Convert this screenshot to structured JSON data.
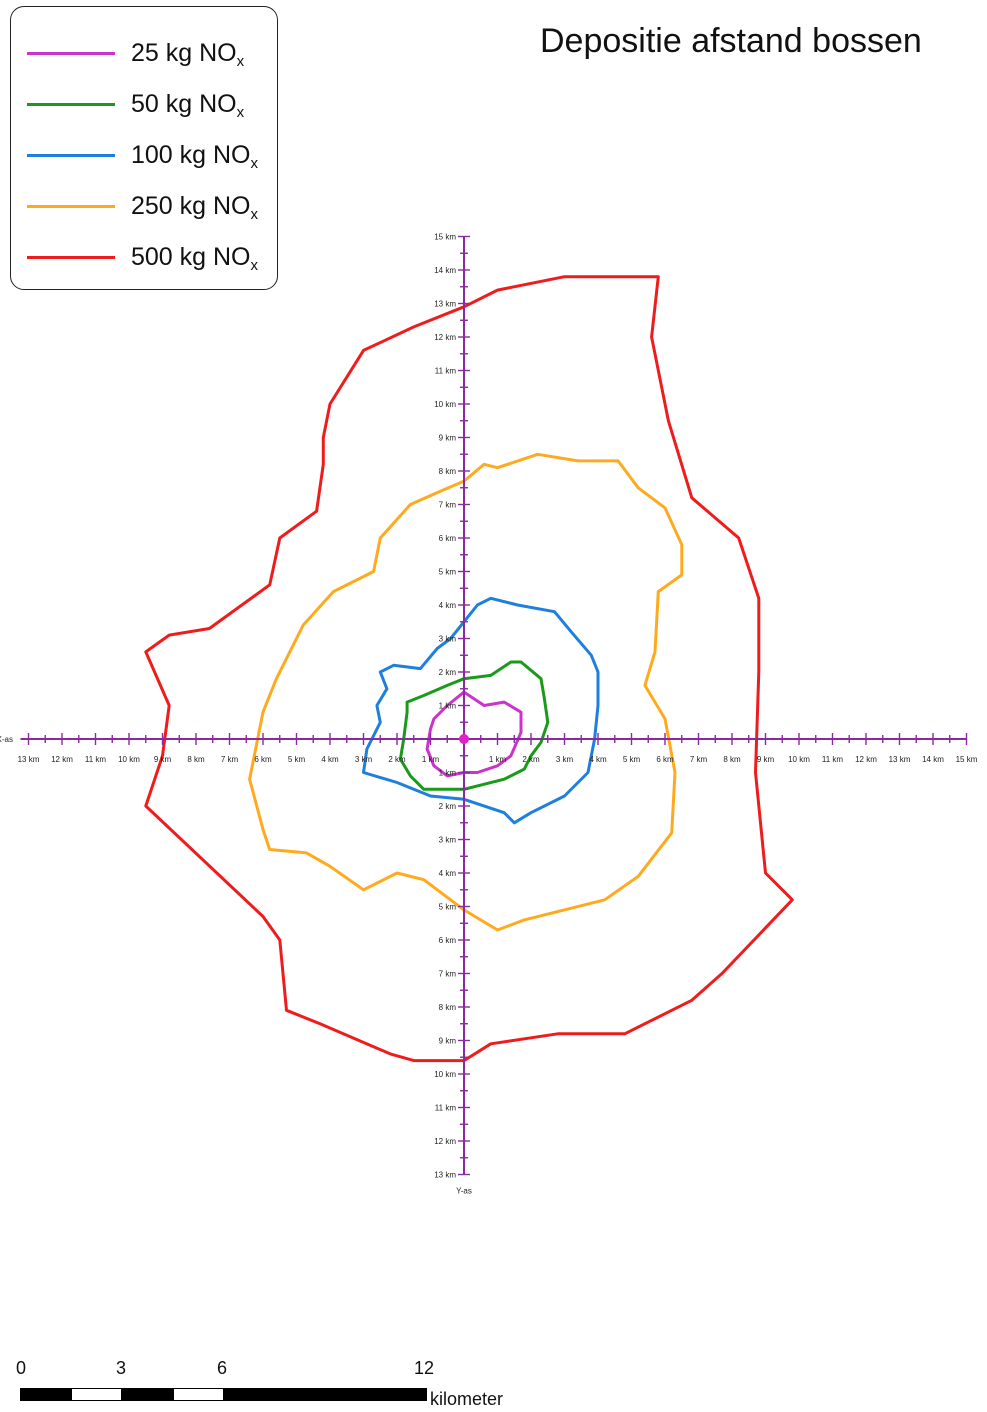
{
  "title": "Depositie afstand bossen",
  "legend": [
    {
      "base": "25 kg NO",
      "sub": "x",
      "color": "#cc33cc"
    },
    {
      "base": "50 kg NO",
      "sub": "x",
      "color": "#1a9a1a"
    },
    {
      "base": "100 kg NO",
      "sub": "x",
      "color": "#1e7fdf"
    },
    {
      "base": "250 kg NO",
      "sub": "x",
      "color": "#ffaa1e"
    },
    {
      "base": "500 kg NO",
      "sub": "x",
      "color": "#ee1c1c"
    }
  ],
  "axes": {
    "x_label": "X-as",
    "y_label": "Y-as",
    "color": "#8a2a9e",
    "x_left_km": 13,
    "x_right_km": 15,
    "y_up_km": 15,
    "y_down_km": 13,
    "unit": "km"
  },
  "contours": [
    {
      "id": "500",
      "color": "#ee1c1c",
      "points": [
        [
          0,
          12.9
        ],
        [
          1,
          13.4
        ],
        [
          3,
          13.8
        ],
        [
          5.8,
          13.8
        ],
        [
          5.6,
          12
        ],
        [
          6.1,
          9.5
        ],
        [
          6.8,
          7.2
        ],
        [
          8.2,
          6
        ],
        [
          8.8,
          4.2
        ],
        [
          8.8,
          2
        ],
        [
          8.7,
          -1
        ],
        [
          9,
          -4
        ],
        [
          9.8,
          -4.8
        ],
        [
          7.7,
          -7
        ],
        [
          6.8,
          -7.8
        ],
        [
          4.8,
          -8.8
        ],
        [
          2.8,
          -8.8
        ],
        [
          0.8,
          -9.1
        ],
        [
          0,
          -9.6
        ],
        [
          -1.5,
          -9.6
        ],
        [
          -2.2,
          -9.4
        ],
        [
          -4.3,
          -8.5
        ],
        [
          -5.3,
          -8.1
        ],
        [
          -5.5,
          -6
        ],
        [
          -6,
          -5.3
        ],
        [
          -9.5,
          -2
        ],
        [
          -9,
          -0.5
        ],
        [
          -8.8,
          1
        ],
        [
          -9.5,
          2.6
        ],
        [
          -8.8,
          3.1
        ],
        [
          -7.6,
          3.3
        ],
        [
          -5.8,
          4.6
        ],
        [
          -5.5,
          6
        ],
        [
          -4.4,
          6.8
        ],
        [
          -4.2,
          8.2
        ],
        [
          -4.2,
          9
        ],
        [
          -4,
          10
        ],
        [
          -3,
          11.6
        ],
        [
          -1.5,
          12.3
        ],
        [
          0,
          12.9
        ]
      ]
    },
    {
      "id": "250",
      "color": "#ffaa1e",
      "points": [
        [
          0,
          7.7
        ],
        [
          0.6,
          8.2
        ],
        [
          1,
          8.1
        ],
        [
          2.2,
          8.5
        ],
        [
          3.4,
          8.3
        ],
        [
          4.6,
          8.3
        ],
        [
          5.2,
          7.5
        ],
        [
          6.0,
          6.9
        ],
        [
          6.5,
          5.8
        ],
        [
          6.5,
          4.9
        ],
        [
          5.8,
          4.4
        ],
        [
          5.7,
          2.6
        ],
        [
          5.4,
          1.6
        ],
        [
          6.0,
          0.6
        ],
        [
          6.3,
          -1.0
        ],
        [
          6.2,
          -2.8
        ],
        [
          5.2,
          -4.1
        ],
        [
          4.2,
          -4.8
        ],
        [
          1.8,
          -5.4
        ],
        [
          1.0,
          -5.7
        ],
        [
          0,
          -5.1
        ],
        [
          -1.2,
          -4.2
        ],
        [
          -2.0,
          -4.0
        ],
        [
          -3.0,
          -4.5
        ],
        [
          -4.0,
          -3.8
        ],
        [
          -4.7,
          -3.4
        ],
        [
          -5.8,
          -3.3
        ],
        [
          -6.0,
          -2.7
        ],
        [
          -6.4,
          -1.2
        ],
        [
          -6.0,
          0.8
        ],
        [
          -5.6,
          1.8
        ],
        [
          -4.8,
          3.4
        ],
        [
          -3.9,
          4.4
        ],
        [
          -2.7,
          5.0
        ],
        [
          -2.5,
          6.0
        ],
        [
          -1.6,
          7.0
        ],
        [
          -0.7,
          7.4
        ],
        [
          0,
          7.7
        ]
      ]
    },
    {
      "id": "100",
      "color": "#1e7fdf",
      "points": [
        [
          0,
          3.5
        ],
        [
          0.4,
          4.0
        ],
        [
          0.8,
          4.2
        ],
        [
          1.6,
          4.0
        ],
        [
          2.7,
          3.8
        ],
        [
          3.2,
          3.2
        ],
        [
          3.8,
          2.5
        ],
        [
          4.0,
          2.0
        ],
        [
          4.0,
          1.0
        ],
        [
          3.9,
          0
        ],
        [
          3.7,
          -1.0
        ],
        [
          3.0,
          -1.7
        ],
        [
          2.0,
          -2.2
        ],
        [
          1.5,
          -2.5
        ],
        [
          1.2,
          -2.2
        ],
        [
          0,
          -1.8
        ],
        [
          -1,
          -1.7
        ],
        [
          -2,
          -1.3
        ],
        [
          -3.0,
          -1.0
        ],
        [
          -2.9,
          -0.3
        ],
        [
          -2.5,
          0.5
        ],
        [
          -2.6,
          1.0
        ],
        [
          -2.3,
          1.5
        ],
        [
          -2.5,
          2
        ],
        [
          -2.1,
          2.2
        ],
        [
          -1.3,
          2.1
        ],
        [
          -0.8,
          2.7
        ],
        [
          -0.4,
          3
        ],
        [
          0,
          3.5
        ]
      ]
    },
    {
      "id": "50",
      "color": "#1a9a1a",
      "points": [
        [
          0,
          1.8
        ],
        [
          0.8,
          1.9
        ],
        [
          1.4,
          2.3
        ],
        [
          1.7,
          2.3
        ],
        [
          2.3,
          1.8
        ],
        [
          2.4,
          1.2
        ],
        [
          2.5,
          0.5
        ],
        [
          2.3,
          -0.1
        ],
        [
          2.0,
          -0.5
        ],
        [
          1.8,
          -0.9
        ],
        [
          1.2,
          -1.2
        ],
        [
          0,
          -1.5
        ],
        [
          -0.7,
          -1.5
        ],
        [
          -1.2,
          -1.5
        ],
        [
          -1.6,
          -1.1
        ],
        [
          -1.9,
          -0.6
        ],
        [
          -1.8,
          0
        ],
        [
          -1.7,
          0.8
        ],
        [
          -1.7,
          1.1
        ],
        [
          -1.2,
          1.3
        ],
        [
          -0.5,
          1.6
        ],
        [
          0,
          1.8
        ]
      ]
    },
    {
      "id": "25",
      "color": "#cc33cc",
      "points": [
        [
          0,
          1.4
        ],
        [
          0.6,
          1.0
        ],
        [
          1.2,
          1.1
        ],
        [
          1.7,
          0.8
        ],
        [
          1.7,
          0.2
        ],
        [
          1.4,
          -0.5
        ],
        [
          1.0,
          -0.8
        ],
        [
          0.4,
          -1.0
        ],
        [
          0,
          -1.0
        ],
        [
          -0.5,
          -1.1
        ],
        [
          -0.9,
          -0.8
        ],
        [
          -1.1,
          -0.3
        ],
        [
          -1.0,
          0.3
        ],
        [
          -0.9,
          0.6
        ],
        [
          -0.5,
          1.0
        ],
        [
          0,
          1.4
        ]
      ]
    }
  ],
  "scale_bar": {
    "ticks": [
      "0",
      "3",
      "6",
      "12"
    ],
    "unit": "kilometer"
  }
}
